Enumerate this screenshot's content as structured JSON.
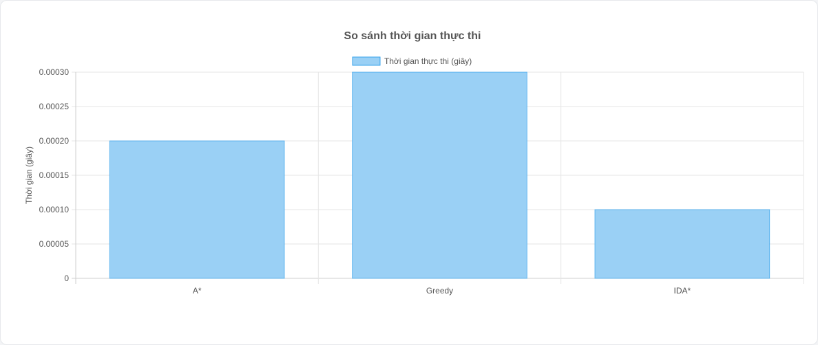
{
  "chart_data": {
    "type": "bar",
    "title": "So sánh thời gian thực thi",
    "categories": [
      "A*",
      "Greedy",
      "IDA*"
    ],
    "series": [
      {
        "name": "Thời gian thực thi (giây)",
        "values": [
          0.0002,
          0.0003,
          0.0001
        ]
      }
    ],
    "ylabel": "Thời gian (giây)",
    "xlabel": "",
    "ylim": [
      0,
      0.0003
    ],
    "y_ticks": [
      "0",
      "0.00005",
      "0.00010",
      "0.00015",
      "0.00020",
      "0.00025",
      "0.00030"
    ],
    "y_tick_values": [
      0,
      5e-05,
      0.0001,
      0.00015,
      0.0002,
      0.00025,
      0.0003
    ],
    "grid": true,
    "legend_position": "top-center",
    "colors": {
      "bar_fill": "#9ad0f5",
      "bar_border": "#36a2eb",
      "grid": "#e5e5e5",
      "text": "#555555"
    }
  }
}
